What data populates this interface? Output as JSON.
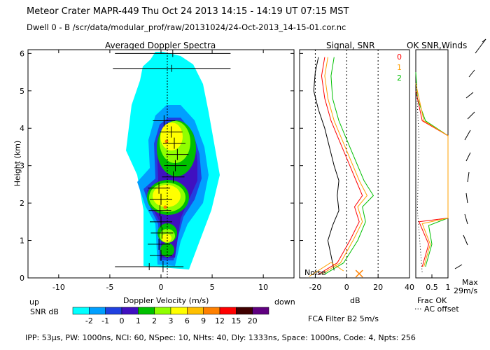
{
  "header": {
    "line1": "Meteor Crater   MAPR-449   Thu Oct 24 2013 14:15 - 14:19 UT 07:15 MST",
    "line2": "Dwell  0 -  B    /scr/data/modular_prof/raw/20131024/24-Oct-2013_14-15-01.cor.nc"
  },
  "chart_data": [
    {
      "type": "heatmap",
      "title": "Averaged Doppler Spectra",
      "xlabel": "Doppler Velocity (m/s)",
      "ylabel": "Height (km)",
      "xlim": [
        -13,
        13
      ],
      "ylim": [
        0,
        6.1
      ],
      "xticks": [
        -10,
        -5,
        0,
        5,
        10
      ],
      "yticks": [
        0,
        1,
        2,
        3,
        4,
        5,
        6
      ],
      "x_left_label": "up",
      "x_right_label": "down",
      "colorbar": {
        "label": "SNR dB",
        "ticks": [
          "-2",
          "-1",
          "0",
          "1",
          "2",
          "3",
          "6",
          "9",
          "12",
          "15",
          "20"
        ],
        "colors": [
          "#00ffff",
          "#00a0ff",
          "#2040e0",
          "#4010c0",
          "#00c000",
          "#90ff00",
          "#ffff00",
          "#ffc000",
          "#ff8000",
          "#ff0000",
          "#400000",
          "#600080"
        ]
      },
      "mean_velocity": [
        {
          "h": 0.3,
          "v": 0.2
        },
        {
          "h": 0.6,
          "v": 0.0
        },
        {
          "h": 0.9,
          "v": -0.2
        },
        {
          "h": 1.2,
          "v": 0.1
        },
        {
          "h": 1.5,
          "v": 0.0
        },
        {
          "h": 1.8,
          "v": -0.1
        },
        {
          "h": 2.1,
          "v": 0.0
        },
        {
          "h": 2.4,
          "v": -0.2
        },
        {
          "h": 2.7,
          "v": 1.2
        },
        {
          "h": 3.0,
          "v": 1.4
        },
        {
          "h": 3.3,
          "v": 1.6
        },
        {
          "h": 3.6,
          "v": 1.3
        },
        {
          "h": 3.9,
          "v": 1.0
        },
        {
          "h": 4.2,
          "v": 0.3
        }
      ],
      "wide_bars": [
        {
          "h": 0.3,
          "lo": -4.5,
          "hi": 2.2
        },
        {
          "h": 5.6,
          "lo": -4.7,
          "hi": 6.8
        },
        {
          "h": 6.0,
          "lo": -4.5,
          "hi": 6.8
        }
      ]
    },
    {
      "type": "line",
      "title": "Signal, SNR",
      "xlabel": "dB",
      "xlim": [
        -30,
        40
      ],
      "ylim": [
        0,
        6.1
      ],
      "xticks": [
        -20,
        0,
        20,
        40
      ],
      "legend": [
        "0",
        "1",
        "2"
      ],
      "noise_label": "Noise",
      "series": [
        {
          "name": "signal",
          "color": "#000000",
          "points": [
            [
              -8,
              0.2
            ],
            [
              -10,
              0.6
            ],
            [
              -12,
              1.0
            ],
            [
              -9,
              1.4
            ],
            [
              -5,
              1.8
            ],
            [
              -6,
              2.2
            ],
            [
              -5,
              2.6
            ],
            [
              -8,
              3.0
            ],
            [
              -11,
              3.5
            ],
            [
              -14,
              4.0
            ],
            [
              -18,
              4.5
            ],
            [
              -21,
              5.0
            ],
            [
              -20,
              5.5
            ],
            [
              -18,
              5.9
            ]
          ]
        },
        {
          "name": "0",
          "color": "#ff0000",
          "points": [
            [
              -18,
              0.1
            ],
            [
              -6,
              0.4
            ],
            [
              2,
              1.0
            ],
            [
              8,
              1.5
            ],
            [
              5,
              1.9
            ],
            [
              10,
              2.2
            ],
            [
              6,
              2.6
            ],
            [
              2,
              3.0
            ],
            [
              -2,
              3.4
            ],
            [
              -6,
              3.8
            ],
            [
              -10,
              4.2
            ],
            [
              -14,
              4.8
            ],
            [
              -16,
              5.4
            ],
            [
              -14,
              5.9
            ]
          ]
        },
        {
          "name": "1",
          "color": "#ffa000",
          "points": [
            [
              -16,
              0.1
            ],
            [
              -4,
              0.4
            ],
            [
              4,
              1.0
            ],
            [
              10,
              1.5
            ],
            [
              7,
              1.9
            ],
            [
              13,
              2.2
            ],
            [
              8,
              2.6
            ],
            [
              4,
              3.0
            ],
            [
              0,
              3.4
            ],
            [
              -4,
              3.8
            ],
            [
              -8,
              4.2
            ],
            [
              -12,
              4.8
            ],
            [
              -14,
              5.4
            ],
            [
              -12,
              5.9
            ]
          ]
        },
        {
          "name": "2",
          "color": "#00c000",
          "points": [
            [
              -14,
              0.1
            ],
            [
              -2,
              0.4
            ],
            [
              7,
              1.0
            ],
            [
              12,
              1.5
            ],
            [
              10,
              1.9
            ],
            [
              17,
              2.2
            ],
            [
              11,
              2.6
            ],
            [
              7,
              3.0
            ],
            [
              3,
              3.4
            ],
            [
              -1,
              3.8
            ],
            [
              -5,
              4.2
            ],
            [
              -9,
              4.8
            ],
            [
              -10,
              5.4
            ],
            [
              -8,
              5.9
            ]
          ]
        }
      ]
    },
    {
      "type": "line",
      "title": "OK SNR,Winds",
      "xlim": [
        0,
        1
      ],
      "xticks": [
        "0.5",
        "1"
      ],
      "xlabel": "Frac OK",
      "xlabel2": "AC offset",
      "max_label": "Max",
      "max_value": "29m/s",
      "series": [
        {
          "name": "frac_ok",
          "color": "#00c000",
          "points": [
            [
              0.3,
              0.3
            ],
            [
              0.5,
              0.9
            ],
            [
              0.4,
              1.4
            ],
            [
              1.0,
              1.6
            ],
            [
              1.0,
              3.8
            ],
            [
              0.3,
              4.2
            ],
            [
              0.05,
              4.8
            ],
            [
              0.0,
              5.5
            ]
          ]
        },
        {
          "name": "frac_ok_1",
          "color": "#ff0000",
          "points": [
            [
              0.2,
              0.3
            ],
            [
              0.4,
              0.9
            ],
            [
              0.1,
              1.5
            ],
            [
              1.0,
              1.6
            ],
            [
              1.0,
              3.8
            ],
            [
              0.2,
              4.2
            ],
            [
              0.0,
              5.0
            ]
          ]
        },
        {
          "name": "frac_ok_2",
          "color": "#ffa000",
          "points": [
            [
              0.25,
              0.3
            ],
            [
              0.45,
              0.9
            ],
            [
              0.2,
              1.45
            ],
            [
              1.0,
              1.6
            ],
            [
              1.0,
              3.8
            ],
            [
              0.25,
              4.2
            ],
            [
              0.0,
              5.2
            ]
          ]
        }
      ]
    }
  ],
  "footer": {
    "fca": "FCA Filter B2  5m/s",
    "params": "IPP: 53µs,  PW: 1000ns,  NCI: 60,  NSpec: 10,  NHts: 40,  Dly: 1333ns,  Space: 1000ns,  Code: 4,  Npts: 256"
  }
}
